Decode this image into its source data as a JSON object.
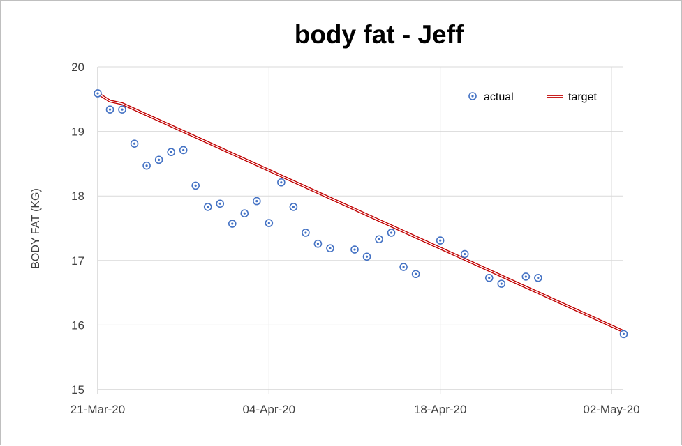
{
  "chart_data": {
    "type": "scatter",
    "title": "body fat - Jeff",
    "xlabel": "",
    "ylabel": "BODY FAT (KG)",
    "ylim": [
      15,
      20
    ],
    "y_ticks": [
      15,
      16,
      17,
      18,
      19,
      20
    ],
    "x_ticks": [
      {
        "day": 0,
        "label": "21-Mar-20"
      },
      {
        "day": 14,
        "label": "04-Apr-20"
      },
      {
        "day": 28,
        "label": "18-Apr-20"
      },
      {
        "day": 42,
        "label": "02-May-20"
      }
    ],
    "x_range_days": [
      0,
      43
    ],
    "x_unit": "days since 21-Mar-20",
    "grid": true,
    "legend_position": "top-right",
    "series": [
      {
        "name": "actual",
        "kind": "scatter",
        "color": "#4472c4",
        "points": [
          {
            "day": 0,
            "value": 19.59
          },
          {
            "day": 1,
            "value": 19.34
          },
          {
            "day": 2,
            "value": 19.34
          },
          {
            "day": 3,
            "value": 18.81
          },
          {
            "day": 4,
            "value": 18.47
          },
          {
            "day": 5,
            "value": 18.56
          },
          {
            "day": 6,
            "value": 18.68
          },
          {
            "day": 7,
            "value": 18.71
          },
          {
            "day": 8,
            "value": 18.16
          },
          {
            "day": 9,
            "value": 17.83
          },
          {
            "day": 10,
            "value": 17.88
          },
          {
            "day": 11,
            "value": 17.57
          },
          {
            "day": 12,
            "value": 17.73
          },
          {
            "day": 13,
            "value": 17.92
          },
          {
            "day": 14,
            "value": 17.58
          },
          {
            "day": 15,
            "value": 18.21
          },
          {
            "day": 16,
            "value": 17.83
          },
          {
            "day": 17,
            "value": 17.43
          },
          {
            "day": 18,
            "value": 17.26
          },
          {
            "day": 19,
            "value": 17.19
          },
          {
            "day": 21,
            "value": 17.17
          },
          {
            "day": 22,
            "value": 17.06
          },
          {
            "day": 23,
            "value": 17.33
          },
          {
            "day": 24,
            "value": 17.43
          },
          {
            "day": 25,
            "value": 16.9
          },
          {
            "day": 26,
            "value": 16.79
          },
          {
            "day": 28,
            "value": 17.31
          },
          {
            "day": 30,
            "value": 17.1
          },
          {
            "day": 32,
            "value": 16.73
          },
          {
            "day": 33,
            "value": 16.64
          },
          {
            "day": 35,
            "value": 16.75
          },
          {
            "day": 36,
            "value": 16.73
          },
          {
            "day": 43,
            "value": 15.86
          }
        ]
      },
      {
        "name": "target",
        "kind": "line",
        "color": "#c00000",
        "points": [
          {
            "day": 0,
            "value": 19.59
          },
          {
            "day": 1,
            "value": 19.47
          },
          {
            "day": 2,
            "value": 19.43
          },
          {
            "day": 43,
            "value": 15.9
          }
        ]
      }
    ]
  }
}
